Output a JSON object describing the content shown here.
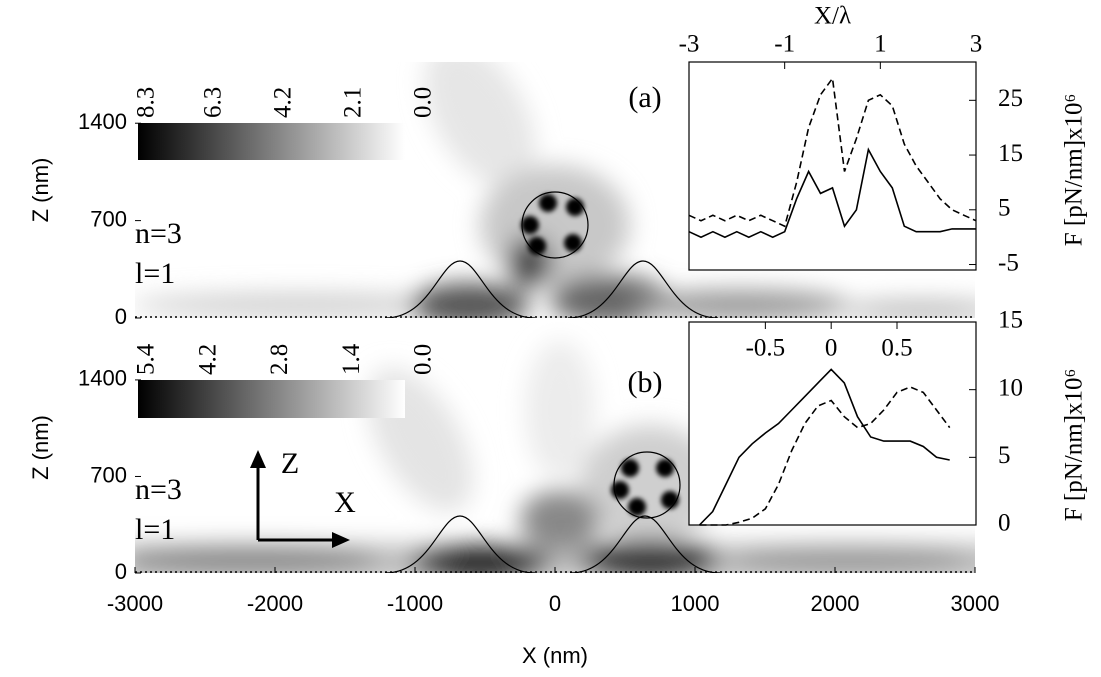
{
  "chart_data": [
    {
      "type": "field",
      "panel_label": "(a)",
      "annotations": [
        "n=3",
        "l=1"
      ],
      "ylabel": "Z (nm)",
      "xlim": [
        -3000,
        3000
      ],
      "ylim": [
        0,
        1840
      ],
      "yticks": [
        0,
        700,
        1400
      ],
      "colorbar": {
        "lim": [
          0,
          8.3
        ],
        "ticks": [
          8.3,
          6.3,
          4.2,
          2.1,
          {
            "value": 0,
            "label": "0.0"
          }
        ]
      }
    },
    {
      "type": "line",
      "xlabel": "X/λ",
      "ylabel": "F [pN/nm]x10⁶",
      "x": [
        -3,
        -2.75,
        -2.5,
        -2.25,
        -2,
        -1.75,
        -1.5,
        -1.25,
        -1,
        -0.75,
        -0.5,
        -0.25,
        0,
        0.25,
        0.5,
        0.75,
        1,
        1.25,
        1.5,
        1.75,
        2,
        2.25,
        2.5,
        2.75,
        3
      ],
      "xlim": [
        -3,
        3
      ],
      "xticks": [
        -3,
        -1,
        1,
        3
      ],
      "ylim": [
        -6,
        32
      ],
      "yticks": [
        -5,
        5,
        15,
        25
      ],
      "series": [
        {
          "style": "solid",
          "color": "#000000",
          "values": [
            1,
            0,
            1,
            0,
            1,
            0,
            1,
            0,
            1,
            7,
            12,
            8,
            9,
            2,
            5,
            16,
            12,
            9,
            2,
            1,
            1,
            1,
            1.5,
            1.5,
            1.5
          ]
        },
        {
          "style": "dashed",
          "color": "#000000",
          "values": [
            4,
            3,
            4,
            3,
            4,
            3,
            4,
            3,
            2,
            10,
            20,
            26,
            29,
            12,
            18,
            25,
            26,
            24,
            17,
            13,
            10,
            7,
            5,
            4,
            3
          ]
        }
      ]
    },
    {
      "type": "field",
      "panel_label": "(b)",
      "annotations": [
        "n=3",
        "l=1"
      ],
      "axis_arrows": [
        "Z",
        "X"
      ],
      "ylabel": "Z (nm)",
      "xlabel": "X (nm)",
      "xlim": [
        -3000,
        3000
      ],
      "xticks": [
        -3000,
        -2000,
        -1000,
        0,
        1000,
        2000,
        3000
      ],
      "ylim": [
        0,
        1820
      ],
      "yticks": [
        0,
        700,
        1400
      ],
      "colorbar": {
        "lim": [
          0,
          5.4
        ],
        "ticks": [
          5.4,
          4.2,
          2.8,
          1.4,
          {
            "value": 0,
            "label": "0.0"
          }
        ]
      }
    },
    {
      "type": "line",
      "ylabel": "F [pN/nm]x10⁶",
      "x": [
        -1,
        -0.9,
        -0.8,
        -0.7,
        -0.6,
        -0.5,
        -0.4,
        -0.3,
        -0.2,
        -0.1,
        0,
        0.1,
        0.2,
        0.3,
        0.4,
        0.5,
        0.6,
        0.7,
        0.8,
        0.9
      ],
      "xlim": [
        -1.08,
        1.1
      ],
      "xticks": [
        -0.5,
        0,
        0.5
      ],
      "ylim": [
        0,
        15
      ],
      "yticks": [
        0,
        5,
        10,
        15
      ],
      "series": [
        {
          "style": "solid",
          "color": "#000000",
          "values": [
            0,
            1,
            3,
            5,
            6,
            6.8,
            7.5,
            8.5,
            9.5,
            10.5,
            11.5,
            10.5,
            8,
            6.5,
            6.2,
            6.2,
            6.2,
            5.8,
            5,
            4.8
          ]
        },
        {
          "style": "dashed",
          "color": "#000000",
          "values": [
            0,
            0,
            0,
            0.2,
            0.5,
            1.2,
            3,
            5.5,
            7.5,
            8.8,
            9.2,
            8,
            7.2,
            7.5,
            8.5,
            9.8,
            10.2,
            9.8,
            8.5,
            7.2
          ]
        }
      ]
    }
  ]
}
